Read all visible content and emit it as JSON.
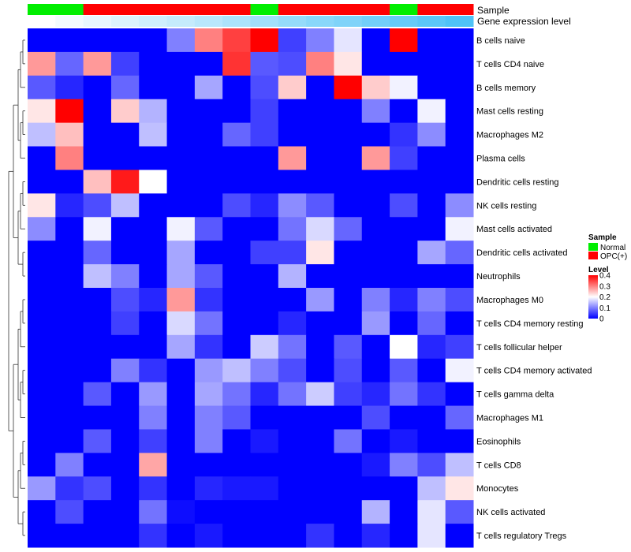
{
  "chart_data": {
    "type": "heatmap",
    "annotation_labels": [
      "Sample",
      "Gene expression level"
    ],
    "sample_groups": [
      "Normal",
      "Normal",
      "OPC(+)",
      "OPC(+)",
      "OPC(+)",
      "OPC(+)",
      "OPC(+)",
      "OPC(+)",
      "Normal",
      "OPC(+)",
      "OPC(+)",
      "OPC(+)",
      "OPC(+)",
      "Normal",
      "OPC(+)",
      "OPC(+)"
    ],
    "expression_level": [
      0,
      0.07,
      0.13,
      0.2,
      0.27,
      0.33,
      0.4,
      0.47,
      0.53,
      0.6,
      0.67,
      0.73,
      0.8,
      0.87,
      0.93,
      1
    ],
    "rows": [
      "B cells naive",
      "T cells CD4 naive",
      "B cells memory",
      "Mast cells resting",
      "Macrophages M2",
      "Plasma cells",
      "Dendritic cells resting",
      "NK cells resting",
      "Mast cells activated",
      "Dendritic cells activated",
      "Neutrophils",
      "Macrophages M0",
      "T cells CD4 memory resting",
      "T cells follicular helper",
      "T cells CD4 memory activated",
      "T cells gamma delta",
      "Macrophages M1",
      "Eosinophils",
      "T cells CD8",
      "Monocytes",
      "NK cells activated",
      "T cells regulatory  Tregs"
    ],
    "values": [
      [
        0,
        0,
        0,
        0,
        0,
        0.1,
        0.3,
        0.35,
        0.4,
        0.05,
        0.1,
        0.18,
        0,
        0.4,
        0,
        0
      ],
      [
        0.28,
        0.08,
        0.28,
        0.05,
        0,
        0,
        0,
        0.36,
        0.07,
        0.06,
        0.3,
        0.22,
        0,
        0,
        0,
        0
      ],
      [
        0.07,
        0.03,
        0,
        0.08,
        0,
        0,
        0.13,
        0,
        0.06,
        0.24,
        0,
        0.4,
        0.24,
        0.19,
        0,
        0
      ],
      [
        0.22,
        0.4,
        0,
        0.24,
        0.14,
        0,
        0,
        0,
        0.05,
        0,
        0,
        0,
        0.1,
        0,
        0.19,
        0
      ],
      [
        0.15,
        0.25,
        0,
        0,
        0.15,
        0,
        0,
        0.08,
        0.05,
        0,
        0,
        0,
        0,
        0.04,
        0.11,
        0
      ],
      [
        0,
        0.3,
        0,
        0,
        0,
        0,
        0,
        0,
        0,
        0.28,
        0,
        0,
        0.28,
        0.05,
        0,
        0
      ],
      [
        0,
        0,
        0.25,
        0.38,
        0.2,
        0,
        0,
        0,
        0,
        0,
        0,
        0,
        0,
        0,
        0,
        0
      ],
      [
        0.22,
        0.03,
        0.06,
        0.15,
        0,
        0,
        0,
        0.06,
        0.03,
        0.11,
        0.07,
        0,
        0,
        0.06,
        0,
        0.11
      ],
      [
        0.11,
        0,
        0.19,
        0,
        0,
        0.19,
        0.07,
        0,
        0,
        0.09,
        0.17,
        0.08,
        0,
        0,
        0,
        0.19
      ],
      [
        0,
        0,
        0.08,
        0,
        0,
        0.13,
        0,
        0,
        0.05,
        0.05,
        0.22,
        0,
        0,
        0,
        0.13,
        0.08
      ],
      [
        0,
        0,
        0.15,
        0.1,
        0,
        0.13,
        0.07,
        0,
        0,
        0.14,
        0,
        0,
        0,
        0,
        0,
        0
      ],
      [
        0,
        0,
        0,
        0.06,
        0.03,
        0.28,
        0.04,
        0,
        0,
        0,
        0.12,
        0,
        0.1,
        0.03,
        0.1,
        0.06
      ],
      [
        0,
        0,
        0,
        0.05,
        0,
        0.17,
        0.09,
        0,
        0,
        0.03,
        0,
        0,
        0.12,
        0,
        0.08,
        0
      ],
      [
        0,
        0,
        0,
        0,
        0,
        0.13,
        0.04,
        0,
        0.16,
        0.09,
        0,
        0.07,
        0,
        0.2,
        0.03,
        0.05
      ],
      [
        0,
        0,
        0,
        0.1,
        0.04,
        0,
        0.12,
        0.15,
        0.1,
        0.06,
        0,
        0.06,
        0,
        0.07,
        0,
        0.19
      ],
      [
        0,
        0,
        0.07,
        0,
        0.12,
        0,
        0.13,
        0.09,
        0.03,
        0.09,
        0.16,
        0.05,
        0.03,
        0.09,
        0.04,
        0
      ],
      [
        0,
        0,
        0,
        0,
        0.1,
        0,
        0.1,
        0.07,
        0,
        0,
        0,
        0,
        0.06,
        0,
        0,
        0.08
      ],
      [
        0,
        0,
        0.07,
        0,
        0.05,
        0,
        0.1,
        0,
        0.02,
        0,
        0,
        0.09,
        0,
        0.02,
        0,
        0
      ],
      [
        0,
        0.1,
        0,
        0,
        0.27,
        0,
        0,
        0,
        0,
        0,
        0,
        0,
        0.02,
        0.1,
        0.06,
        0.15
      ],
      [
        0.12,
        0.04,
        0.06,
        0,
        0.04,
        0,
        0.03,
        0.02,
        0.02,
        0,
        0,
        0,
        0,
        0,
        0.15,
        0.22
      ],
      [
        0,
        0.06,
        0,
        0,
        0.09,
        0.01,
        0,
        0,
        0,
        0,
        0,
        0,
        0.14,
        0,
        0.18,
        0.07
      ],
      [
        0,
        0,
        0,
        0,
        0.04,
        0,
        0.02,
        0,
        0,
        0,
        0.04,
        0,
        0.03,
        0,
        0.18,
        0
      ]
    ],
    "legend": {
      "sample_title": "Sample",
      "sample_entries": [
        {
          "label": "Normal",
          "color": "#00ee00"
        },
        {
          "label": "OPC(+)",
          "color": "#ff0000"
        }
      ],
      "level_title": "Level",
      "level_ticks": [
        "0.4",
        "0.3",
        "0.2",
        "0.1",
        "0"
      ],
      "level_tick_values": [
        0.4,
        0.3,
        0.2,
        0.1,
        0
      ],
      "placement": "right"
    },
    "color_scale": {
      "low": "#0000ff",
      "mid": "#ffffff",
      "high": "#ff0000",
      "min": 0,
      "max": 0.4
    },
    "expression_colors": {
      "low": "#ffffff",
      "high": "#4fc3f7"
    },
    "dendrogram": "rows"
  }
}
